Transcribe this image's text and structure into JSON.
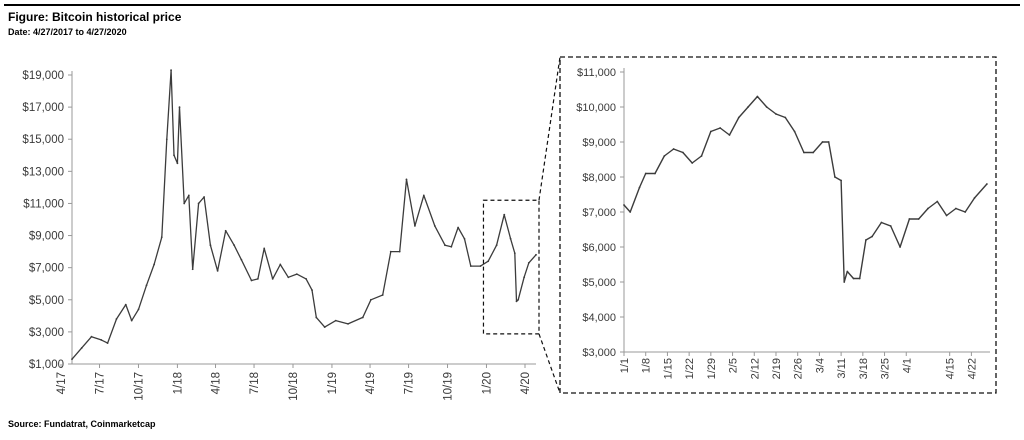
{
  "figure": {
    "title": "Figure: Bitcoin historical price",
    "date_range": "Date: 4/27/2017 to 4/27/2020",
    "source": "Source: Fundatrat, Coinmarketcap"
  },
  "colors": {
    "line": "#3c3c3c",
    "axis": "#999999",
    "frame": "#111111"
  },
  "chart_data": [
    {
      "type": "line",
      "title": "",
      "xlabel": "",
      "ylabel": "",
      "ylim": [
        1000,
        20000
      ],
      "y_ticks": [
        "$1,000",
        "$3,000",
        "$5,000",
        "$7,000",
        "$9,000",
        "$11,000",
        "$13,000",
        "$15,000",
        "$17,000",
        "$19,000"
      ],
      "y_tick_values": [
        1000,
        3000,
        5000,
        7000,
        9000,
        11000,
        13000,
        15000,
        17000,
        19000
      ],
      "x_ticks": [
        "4/17",
        "7/17",
        "10/17",
        "1/18",
        "4/18",
        "7/18",
        "10/18",
        "1/19",
        "4/19",
        "7/19",
        "10/19",
        "1/20",
        "4/20"
      ],
      "x_tick_dates": [
        "2017-04",
        "2017-07",
        "2017-10",
        "2018-01",
        "2018-04",
        "2018-07",
        "2018-10",
        "2019-01",
        "2019-04",
        "2019-07",
        "2019-10",
        "2020-01",
        "2020-04"
      ],
      "grid": false,
      "series": [
        {
          "x": [
            "2017-04-27",
            "2017-05-20",
            "2017-06-12",
            "2017-07-05",
            "2017-07-20",
            "2017-08-10",
            "2017-09-01",
            "2017-09-15",
            "2017-10-01",
            "2017-10-20",
            "2017-11-07",
            "2017-11-25",
            "2017-12-07",
            "2017-12-17",
            "2017-12-24",
            "2018-01-01",
            "2018-01-06",
            "2018-01-17",
            "2018-01-28",
            "2018-02-06",
            "2018-02-20",
            "2018-03-05",
            "2018-03-20",
            "2018-04-06",
            "2018-04-25",
            "2018-05-15",
            "2018-06-01",
            "2018-06-25",
            "2018-07-10",
            "2018-07-25",
            "2018-08-14",
            "2018-09-01",
            "2018-09-20",
            "2018-10-10",
            "2018-11-01",
            "2018-11-15",
            "2018-11-25",
            "2018-12-15",
            "2019-01-10",
            "2019-02-08",
            "2019-03-15",
            "2019-04-03",
            "2019-05-01",
            "2019-05-20",
            "2019-06-10",
            "2019-06-26",
            "2019-07-16",
            "2019-08-06",
            "2019-09-01",
            "2019-09-25",
            "2019-10-10",
            "2019-10-26",
            "2019-11-10",
            "2019-11-25",
            "2019-12-18",
            "2020-01-05",
            "2020-01-25",
            "2020-02-12",
            "2020-02-27",
            "2020-03-08",
            "2020-03-12",
            "2020-03-16",
            "2020-03-30",
            "2020-04-10",
            "2020-04-27"
          ],
          "values": [
            1300,
            2000,
            2700,
            2500,
            2300,
            3800,
            4700,
            3700,
            4400,
            5900,
            7200,
            8900,
            15000,
            19300,
            14000,
            13500,
            17000,
            11000,
            11500,
            6900,
            11000,
            11400,
            8400,
            6800,
            9300,
            8400,
            7500,
            6200,
            6300,
            8200,
            6300,
            7200,
            6400,
            6600,
            6300,
            5600,
            3900,
            3300,
            3700,
            3500,
            3900,
            5000,
            5300,
            8000,
            8000,
            12500,
            9600,
            11500,
            9600,
            8400,
            8300,
            9500,
            8800,
            7100,
            7100,
            7400,
            8400,
            10300,
            8800,
            7900,
            4900,
            5000,
            6400,
            7300,
            7800
          ]
        }
      ],
      "highlight_box_label": ""
    },
    {
      "type": "line",
      "title": "",
      "xlabel": "",
      "ylabel": "",
      "ylim": [
        3000,
        11000
      ],
      "y_ticks": [
        "$3,000",
        "$4,000",
        "$5,000",
        "$6,000",
        "$7,000",
        "$8,000",
        "$9,000",
        "$10,000",
        "$11,000"
      ],
      "y_tick_values": [
        3000,
        4000,
        5000,
        6000,
        7000,
        8000,
        9000,
        10000,
        11000
      ],
      "x_ticks": [
        "1/1",
        "1/8",
        "1/15",
        "1/22",
        "1/29",
        "2/5",
        "2/12",
        "2/19",
        "2/26",
        "3/4",
        "3/11",
        "3/18",
        "3/25",
        "4/1",
        "4/15",
        "4/22"
      ],
      "x_tick_dates": [
        "2020-01-01",
        "2020-01-08",
        "2020-01-15",
        "2020-01-22",
        "2020-01-29",
        "2020-02-05",
        "2020-02-12",
        "2020-02-19",
        "2020-02-26",
        "2020-03-04",
        "2020-03-11",
        "2020-03-18",
        "2020-03-25",
        "2020-04-01",
        "2020-04-15",
        "2020-04-22"
      ],
      "grid": false,
      "series": [
        {
          "x": [
            "2020-01-01",
            "2020-01-03",
            "2020-01-06",
            "2020-01-08",
            "2020-01-11",
            "2020-01-14",
            "2020-01-17",
            "2020-01-20",
            "2020-01-23",
            "2020-01-26",
            "2020-01-29",
            "2020-02-01",
            "2020-02-04",
            "2020-02-07",
            "2020-02-10",
            "2020-02-13",
            "2020-02-16",
            "2020-02-19",
            "2020-02-22",
            "2020-02-25",
            "2020-02-28",
            "2020-03-02",
            "2020-03-05",
            "2020-03-07",
            "2020-03-09",
            "2020-03-11",
            "2020-03-12",
            "2020-03-13",
            "2020-03-15",
            "2020-03-17",
            "2020-03-19",
            "2020-03-21",
            "2020-03-24",
            "2020-03-27",
            "2020-03-30",
            "2020-04-02",
            "2020-04-05",
            "2020-04-08",
            "2020-04-11",
            "2020-04-14",
            "2020-04-17",
            "2020-04-20",
            "2020-04-23",
            "2020-04-27"
          ],
          "values": [
            7200,
            7000,
            7700,
            8100,
            8100,
            8600,
            8800,
            8700,
            8400,
            8600,
            9300,
            9400,
            9200,
            9700,
            10000,
            10300,
            10000,
            9800,
            9700,
            9300,
            8700,
            8700,
            9000,
            9000,
            8000,
            7900,
            5000,
            5300,
            5100,
            5100,
            6200,
            6300,
            6700,
            6600,
            6000,
            6800,
            6800,
            7100,
            7300,
            6900,
            7100,
            7000,
            7400,
            7800
          ]
        }
      ]
    }
  ]
}
